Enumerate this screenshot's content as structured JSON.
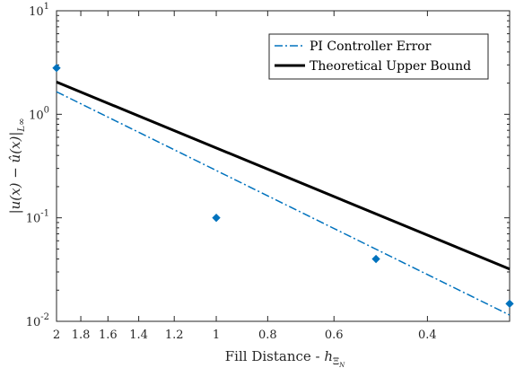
{
  "chart_data": {
    "type": "line",
    "x_scale": "log",
    "y_scale": "log",
    "x_reversed": true,
    "xlim": [
      0.28,
      2.0
    ],
    "ylim": [
      0.01,
      10
    ],
    "x_ticks": [
      2,
      1.8,
      1.6,
      1.4,
      1.2,
      1,
      0.8,
      0.6,
      0.4
    ],
    "x_tick_labels": [
      "2",
      "1.8",
      "1.6",
      "1.4",
      "1.2",
      "1",
      "0.8",
      "0.6",
      "0.4"
    ],
    "y_ticks": [
      0.01,
      0.1,
      1,
      10
    ],
    "y_tick_labels": [
      {
        "base": "10",
        "exp": "-2"
      },
      {
        "base": "10",
        "exp": "-1"
      },
      {
        "base": "10",
        "exp": "0"
      },
      {
        "base": "10",
        "exp": "1"
      }
    ],
    "xlabel": {
      "text": "Fill Distance - ",
      "math_base": "h",
      "math_sub": "Ξ",
      "math_subsub": "N"
    },
    "ylabel": "|u(x) − û(x)|",
    "ylabel_sub": "L∞",
    "grid": false,
    "legend_position": "top-right",
    "series": [
      {
        "name": "PI Controller Error",
        "style": "dash-dot",
        "color": "#0072BD",
        "x": [
          2.0,
          0.28
        ],
        "y": [
          1.65,
          0.0115
        ]
      },
      {
        "name": "Theoretical Upper Bound",
        "style": "solid",
        "color": "#000000",
        "x": [
          2.0,
          0.28
        ],
        "y": [
          2.05,
          0.032
        ]
      }
    ],
    "markers": {
      "color": "#0072BD",
      "x": [
        2.0,
        1.0,
        0.5,
        0.28
      ],
      "y": [
        2.8,
        0.1,
        0.04,
        0.0148
      ]
    }
  }
}
